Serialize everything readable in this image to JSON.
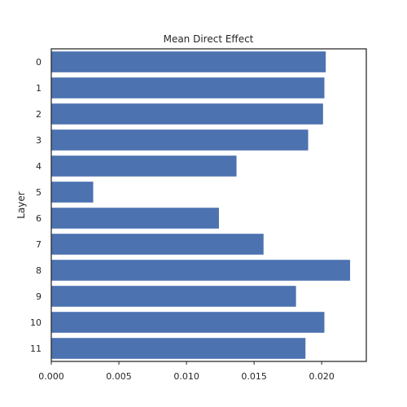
{
  "chart_data": {
    "type": "bar",
    "orientation": "horizontal",
    "title": "Mean Direct Effect",
    "xlabel": "",
    "ylabel": "Layer",
    "categories": [
      "0",
      "1",
      "2",
      "3",
      "4",
      "5",
      "6",
      "7",
      "8",
      "9",
      "10",
      "11"
    ],
    "values": [
      0.0203,
      0.0202,
      0.0201,
      0.019,
      0.0137,
      0.0031,
      0.0124,
      0.0157,
      0.0221,
      0.0181,
      0.0202,
      0.0188
    ],
    "xlim": [
      0,
      0.0233
    ],
    "xticks": [
      "0.000",
      "0.005",
      "0.010",
      "0.015",
      "0.020"
    ],
    "xtick_values": [
      0,
      0.005,
      0.01,
      0.015,
      0.02
    ],
    "bar_color": "#4c72b0",
    "grid": false
  }
}
